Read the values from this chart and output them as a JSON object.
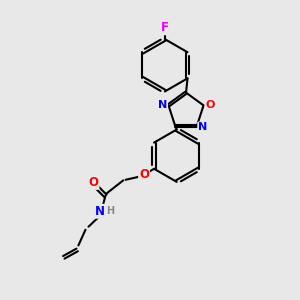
{
  "bg_color": "#e8e8e8",
  "bond_color": "#000000",
  "bond_width": 1.5,
  "atom_colors": {
    "F": "#ee00ee",
    "O": "#ff0000",
    "N": "#0000ff",
    "C": "#000000",
    "H": "#888888"
  },
  "font_size": 8.5,
  "fig_size": [
    3.0,
    3.0
  ],
  "dpi": 100
}
